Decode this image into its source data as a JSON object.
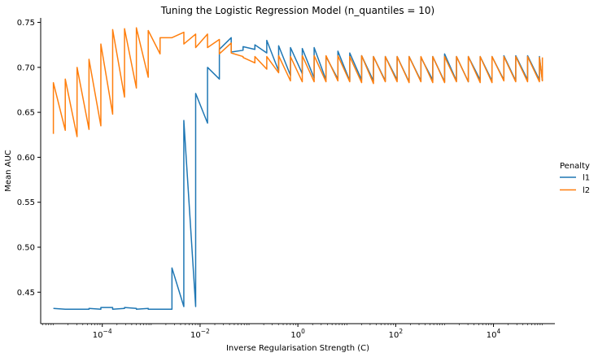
{
  "chart_data": {
    "type": "line",
    "title": "Tuning the Logistic Regression Model (n_quantiles = 10)",
    "xlabel": "Inverse Regularisation Strength (C)",
    "ylabel": "Mean AUC",
    "xscale": "log",
    "xlim": [
      5.5e-06,
      180000
    ],
    "ylim": [
      0.415,
      0.755
    ],
    "xticks": [
      {
        "value": 0.0001,
        "base": "10",
        "exp": "−4"
      },
      {
        "value": 0.01,
        "base": "10",
        "exp": "−2"
      },
      {
        "value": 1,
        "base": "10",
        "exp": "0"
      },
      {
        "value": 100,
        "base": "10",
        "exp": "2"
      },
      {
        "value": 10000,
        "base": "10",
        "exp": "4"
      }
    ],
    "yticks": [
      "0.45",
      "0.50",
      "0.55",
      "0.60",
      "0.65",
      "0.70",
      "0.75"
    ],
    "grid": false,
    "legend": {
      "title": "Penalty",
      "position": "right"
    },
    "series": [
      {
        "name": "l1",
        "color": "#1f77b4",
        "points": [
          [
            1e-05,
            0.432
          ],
          [
            1.75e-05,
            0.431
          ],
          [
            3.05e-05,
            0.431
          ],
          [
            5.35e-05,
            0.431
          ],
          [
            5.35e-05,
            0.432
          ],
          [
            9.35e-05,
            0.431
          ],
          [
            9.35e-05,
            0.433
          ],
          [
            0.000163,
            0.433
          ],
          [
            0.000163,
            0.431
          ],
          [
            0.000285,
            0.432
          ],
          [
            0.000285,
            0.433
          ],
          [
            0.000498,
            0.432
          ],
          [
            0.000498,
            0.431
          ],
          [
            0.00087,
            0.432
          ],
          [
            0.00087,
            0.431
          ],
          [
            0.00152,
            0.431
          ],
          [
            0.00266,
            0.431
          ],
          [
            0.00266,
            0.477
          ],
          [
            0.00465,
            0.434
          ],
          [
            0.00465,
            0.641
          ],
          [
            0.00812,
            0.434
          ],
          [
            0.00812,
            0.671
          ],
          [
            0.0142,
            0.638
          ],
          [
            0.0142,
            0.7
          ],
          [
            0.0248,
            0.687
          ],
          [
            0.0248,
            0.72
          ],
          [
            0.0433,
            0.733
          ],
          [
            0.0433,
            0.717
          ],
          [
            0.0757,
            0.719
          ],
          [
            0.0757,
            0.723
          ],
          [
            0.132,
            0.72
          ],
          [
            0.132,
            0.725
          ],
          [
            0.231,
            0.716
          ],
          [
            0.231,
            0.73
          ],
          [
            0.404,
            0.696
          ],
          [
            0.404,
            0.724
          ],
          [
            0.705,
            0.691
          ],
          [
            0.705,
            0.722
          ],
          [
            1.23,
            0.693
          ],
          [
            1.23,
            0.721
          ],
          [
            2.15,
            0.688
          ],
          [
            2.15,
            0.722
          ],
          [
            3.76,
            0.686
          ],
          [
            3.76,
            0.712
          ],
          [
            6.58,
            0.687
          ],
          [
            6.58,
            0.718
          ],
          [
            11.5,
            0.685
          ],
          [
            11.5,
            0.716
          ],
          [
            20.1,
            0.686
          ],
          [
            20.1,
            0.713
          ],
          [
            35.1,
            0.685
          ],
          [
            35.1,
            0.712
          ],
          [
            61.4,
            0.685
          ],
          [
            61.4,
            0.712
          ],
          [
            107,
            0.686
          ],
          [
            107,
            0.712
          ],
          [
            188,
            0.684
          ],
          [
            188,
            0.712
          ],
          [
            328,
            0.685
          ],
          [
            328,
            0.711
          ],
          [
            573,
            0.686
          ],
          [
            573,
            0.712
          ],
          [
            1000,
            0.684
          ],
          [
            1000,
            0.715
          ],
          [
            1750,
            0.685
          ],
          [
            1750,
            0.712
          ],
          [
            3060,
            0.684
          ],
          [
            3060,
            0.712
          ],
          [
            5340,
            0.686
          ],
          [
            5340,
            0.712
          ],
          [
            9330,
            0.685
          ],
          [
            9330,
            0.712
          ],
          [
            16300,
            0.686
          ],
          [
            16300,
            0.713
          ],
          [
            28500,
            0.685
          ],
          [
            28500,
            0.713
          ],
          [
            49800,
            0.686
          ],
          [
            49800,
            0.713
          ],
          [
            87000,
            0.686
          ],
          [
            87000,
            0.712
          ],
          [
            100000,
            0.685
          ]
        ]
      },
      {
        "name": "l2",
        "color": "#ff7f0e",
        "points": [
          [
            1e-05,
            0.626
          ],
          [
            1e-05,
            0.683
          ],
          [
            1.75e-05,
            0.63
          ],
          [
            1.75e-05,
            0.687
          ],
          [
            3.05e-05,
            0.623
          ],
          [
            3.05e-05,
            0.7
          ],
          [
            5.35e-05,
            0.631
          ],
          [
            5.35e-05,
            0.709
          ],
          [
            9.35e-05,
            0.635
          ],
          [
            9.35e-05,
            0.726
          ],
          [
            0.000163,
            0.648
          ],
          [
            0.000163,
            0.742
          ],
          [
            0.000285,
            0.667
          ],
          [
            0.000285,
            0.743
          ],
          [
            0.000498,
            0.677
          ],
          [
            0.000498,
            0.744
          ],
          [
            0.00087,
            0.689
          ],
          [
            0.00087,
            0.741
          ],
          [
            0.00152,
            0.715
          ],
          [
            0.00152,
            0.733
          ],
          [
            0.00266,
            0.733
          ],
          [
            0.00466,
            0.739
          ],
          [
            0.00466,
            0.726
          ],
          [
            0.00812,
            0.737
          ],
          [
            0.00812,
            0.722
          ],
          [
            0.0142,
            0.737
          ],
          [
            0.0142,
            0.722
          ],
          [
            0.0248,
            0.731
          ],
          [
            0.0248,
            0.715
          ],
          [
            0.0433,
            0.727
          ],
          [
            0.0433,
            0.716
          ],
          [
            0.0757,
            0.712
          ],
          [
            0.0757,
            0.711
          ],
          [
            0.132,
            0.705
          ],
          [
            0.132,
            0.712
          ],
          [
            0.231,
            0.698
          ],
          [
            0.231,
            0.712
          ],
          [
            0.404,
            0.694
          ],
          [
            0.404,
            0.713
          ],
          [
            0.705,
            0.685
          ],
          [
            0.705,
            0.712
          ],
          [
            1.23,
            0.684
          ],
          [
            1.23,
            0.713
          ],
          [
            2.15,
            0.684
          ],
          [
            2.15,
            0.713
          ],
          [
            3.76,
            0.684
          ],
          [
            3.76,
            0.713
          ],
          [
            6.58,
            0.685
          ],
          [
            6.58,
            0.713
          ],
          [
            11.5,
            0.684
          ],
          [
            11.5,
            0.712
          ],
          [
            20.1,
            0.683
          ],
          [
            20.1,
            0.713
          ],
          [
            35.1,
            0.682
          ],
          [
            35.1,
            0.712
          ],
          [
            61.4,
            0.684
          ],
          [
            61.4,
            0.712
          ],
          [
            107,
            0.684
          ],
          [
            107,
            0.712
          ],
          [
            188,
            0.683
          ],
          [
            188,
            0.712
          ],
          [
            328,
            0.684
          ],
          [
            328,
            0.712
          ],
          [
            573,
            0.683
          ],
          [
            573,
            0.712
          ],
          [
            1000,
            0.683
          ],
          [
            1000,
            0.712
          ],
          [
            1750,
            0.684
          ],
          [
            1750,
            0.712
          ],
          [
            3060,
            0.684
          ],
          [
            3060,
            0.712
          ],
          [
            5340,
            0.683
          ],
          [
            5340,
            0.712
          ],
          [
            9330,
            0.683
          ],
          [
            9330,
            0.712
          ],
          [
            16300,
            0.685
          ],
          [
            16300,
            0.712
          ],
          [
            28500,
            0.684
          ],
          [
            28500,
            0.712
          ],
          [
            49800,
            0.684
          ],
          [
            49800,
            0.712
          ],
          [
            87000,
            0.684
          ],
          [
            87000,
            0.711
          ],
          [
            100000,
            0.685
          ],
          [
            100000,
            0.711
          ]
        ]
      }
    ]
  }
}
